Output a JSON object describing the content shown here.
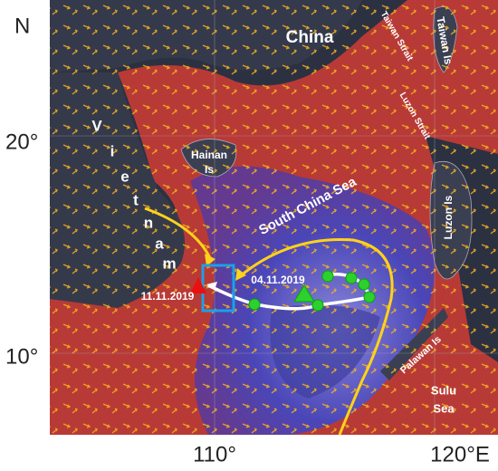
{
  "axes": {
    "north": "N",
    "lat_20": "20°",
    "lat_10": "10°",
    "lon_110": "110°",
    "lon_120": "120°E"
  },
  "places": {
    "china": "China",
    "taiwan_strait": "Taiwan Strait",
    "taiwan_is": "Taiwan Is",
    "luzon_strait": "Luzon Strait",
    "hainan_is": [
      "Hainan",
      "Is"
    ],
    "vietnam_letters": [
      "V",
      "i",
      "e",
      "t",
      "n",
      "a",
      "m"
    ],
    "south_china_sea": "South China Sea",
    "luzon_is": "Luzon Is",
    "palawan_is": "Palawan Is",
    "sulu_sea": [
      "Sulu",
      "Sea"
    ]
  },
  "dates": {
    "start": "04.11.2019",
    "end": "11.11.2019"
  }
}
